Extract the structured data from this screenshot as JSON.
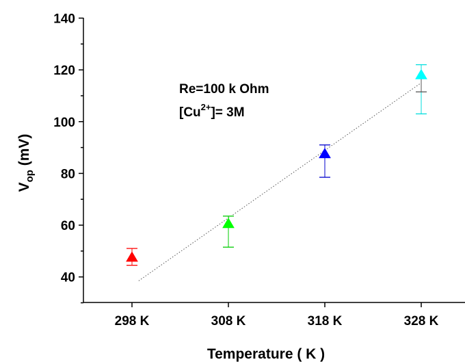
{
  "chart_data": {
    "type": "scatter",
    "title": "",
    "xlabel": "Temperature ( K )",
    "ylabel_main": "V",
    "ylabel_sub": "op",
    "ylabel_unit": " (mV)",
    "categories": [
      "298 K",
      "308 K",
      "318 K",
      "328 K"
    ],
    "ylim": [
      30,
      140
    ],
    "y_ticks": [
      40,
      60,
      80,
      100,
      120,
      140
    ],
    "grid": false,
    "points": [
      {
        "category": "298 K",
        "value": 47.5,
        "err_low": 44.5,
        "err_high": 51,
        "color": "#ff0000",
        "err_color": "#ff0000"
      },
      {
        "category": "308 K",
        "value": 60.5,
        "err_low": 51.5,
        "err_high": 63.5,
        "color": "#00ff00",
        "err_color": "#00cc00"
      },
      {
        "category": "318 K",
        "value": 87.5,
        "err_low": 78.5,
        "err_high": 91,
        "color": "#0000ff",
        "err_color": "#0000cc"
      },
      {
        "category": "328 K",
        "value": 118,
        "err_low": 103,
        "err_high": 122,
        "color": "#00ffff",
        "err_color": "#00dddd"
      }
    ],
    "trendline": {
      "style": "dotted",
      "color": "#555555",
      "x_start": 0.07,
      "y_start": 38.5,
      "x_end": 3.0,
      "y_end": 115
    },
    "annotations": {
      "line1": "Re=100 k Ohm",
      "line2_prefix": "[Cu",
      "line2_sup": "2+",
      "line2_suffix": "]= 3M"
    },
    "extra_bar_328": {
      "low": 111.5,
      "high": 118,
      "color": "#555555"
    }
  }
}
